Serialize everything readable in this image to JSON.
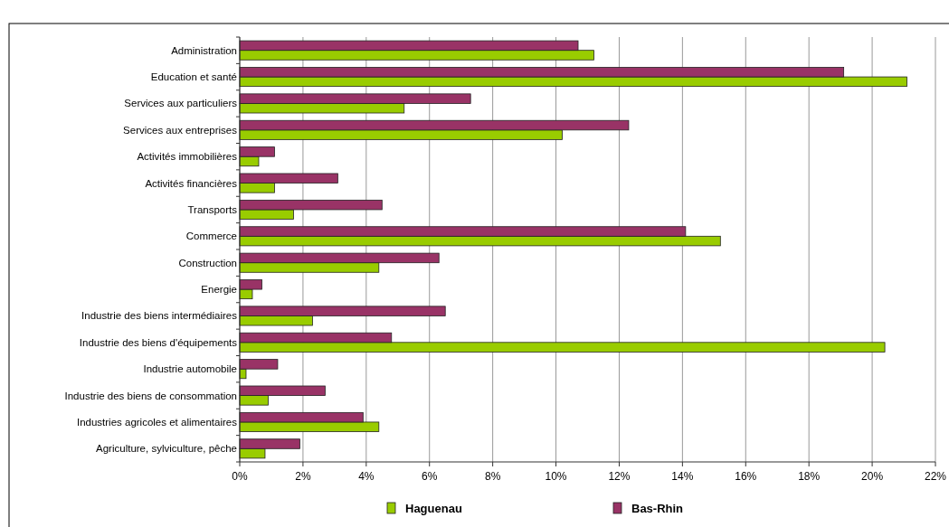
{
  "chart_data": {
    "type": "bar",
    "orientation": "horizontal",
    "categories": [
      "Administration",
      "Education et santé",
      "Services aux particuliers",
      "Services aux entreprises",
      "Activités immobilières",
      "Activités financières",
      "Transports",
      "Commerce",
      "Construction",
      "Energie",
      "Industrie des biens intermédiaires",
      "Industrie des biens d'équipements",
      "Industrie automobile",
      "Industrie des biens de consommation",
      "Industries agricoles et alimentaires",
      "Agriculture, sylviculture, pêche"
    ],
    "series": [
      {
        "name": "Haguenau",
        "color": "#99cc00",
        "values": [
          11.2,
          21.1,
          5.2,
          10.2,
          0.6,
          1.1,
          1.7,
          15.2,
          4.4,
          0.4,
          2.3,
          20.4,
          0.2,
          0.9,
          4.4,
          0.8
        ]
      },
      {
        "name": "Bas-Rhin",
        "color": "#993366",
        "values": [
          10.7,
          19.1,
          7.3,
          12.3,
          1.1,
          3.1,
          4.5,
          14.1,
          6.3,
          0.7,
          6.5,
          4.8,
          1.2,
          2.7,
          3.9,
          1.9
        ]
      }
    ],
    "xlim": [
      0,
      22
    ],
    "xticks": [
      {
        "value": 0,
        "label": "0%"
      },
      {
        "value": 2,
        "label": "2%"
      },
      {
        "value": 4,
        "label": "4%"
      },
      {
        "value": 6,
        "label": "6%"
      },
      {
        "value": 8,
        "label": "8%"
      },
      {
        "value": 10,
        "label": "10%"
      },
      {
        "value": 12,
        "label": "12%"
      },
      {
        "value": 14,
        "label": "14%"
      },
      {
        "value": 16,
        "label": "16%"
      },
      {
        "value": 18,
        "label": "18%"
      },
      {
        "value": 20,
        "label": "20%"
      },
      {
        "value": 22,
        "label": "22%"
      }
    ],
    "grid": "x",
    "legend": "bottom"
  }
}
